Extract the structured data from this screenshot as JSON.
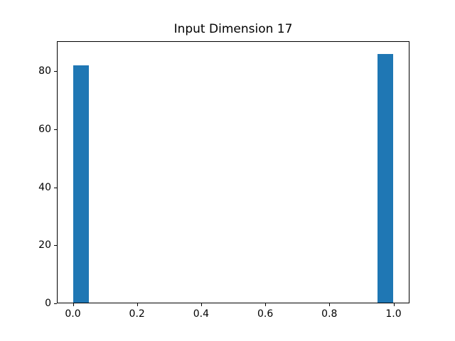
{
  "chart_data": {
    "type": "bar",
    "title": "Input Dimension 17",
    "xlabel": "",
    "ylabel": "",
    "xlim": [
      -0.05,
      1.05
    ],
    "ylim": [
      0,
      90.3
    ],
    "grid": false,
    "legend": null,
    "bar_color": "#1f77b4",
    "axis_color": "#000000",
    "background_color": "#ffffff",
    "x_ticks": [
      {
        "value": 0.0,
        "label": "0.0"
      },
      {
        "value": 0.2,
        "label": "0.2"
      },
      {
        "value": 0.4,
        "label": "0.4"
      },
      {
        "value": 0.6,
        "label": "0.6"
      },
      {
        "value": 0.8,
        "label": "0.8"
      },
      {
        "value": 1.0,
        "label": "1.0"
      }
    ],
    "y_ticks": [
      {
        "value": 0,
        "label": "0"
      },
      {
        "value": 20,
        "label": "20"
      },
      {
        "value": 40,
        "label": "40"
      },
      {
        "value": 60,
        "label": "60"
      },
      {
        "value": 80,
        "label": "80"
      }
    ],
    "bars": [
      {
        "x_start": 0.0,
        "x_end": 0.05,
        "value": 82
      },
      {
        "x_start": 0.95,
        "x_end": 1.0,
        "value": 86
      }
    ]
  }
}
